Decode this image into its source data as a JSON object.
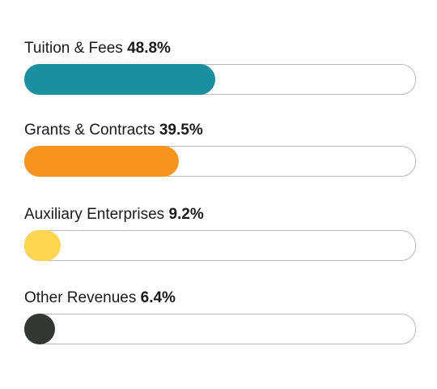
{
  "chart_data": {
    "type": "bar",
    "orientation": "horizontal-progress",
    "categories": [
      "Tuition & Fees",
      "Grants & Contracts",
      "Auxiliary Enterprises",
      "Other Revenues"
    ],
    "values": [
      48.8,
      39.5,
      9.2,
      6.4
    ],
    "value_labels": [
      "48.8%",
      "39.5%",
      "9.2%",
      "6.4%"
    ],
    "colors": [
      "#1a8fa0",
      "#f7941d",
      "#ffd54f",
      "#333734"
    ],
    "unit": "%",
    "xlim": [
      0,
      100
    ],
    "grid": false,
    "legend": "none"
  }
}
